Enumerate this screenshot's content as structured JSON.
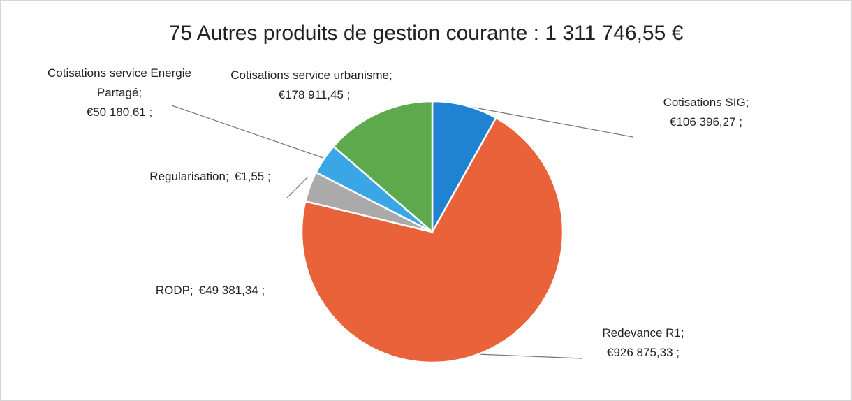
{
  "chart_data": {
    "type": "pie",
    "title": "75 Autres produits de gestion courante : 1 311 746,55 €",
    "categories": [
      "Cotisations SIG;",
      "Redevance R1;",
      "RODP;",
      "Regularisation;",
      "Cotisations service Energie Partagé;",
      "Cotisations service urbanisme;"
    ],
    "values": [
      106396.27,
      926875.33,
      49381.34,
      1.55,
      50180.61,
      178911.45
    ],
    "value_labels": [
      "€106 396,27 ;",
      "€926 875,33 ;",
      "€49 381,34 ;",
      "€1,55 ;",
      "€50 180,61 ;",
      "€178 911,45 ;"
    ],
    "colors": [
      "#1f82d2",
      "#ea6239",
      "#a9aaa9",
      "#8c8c8c",
      "#3ba6e6",
      "#5da94c"
    ]
  }
}
